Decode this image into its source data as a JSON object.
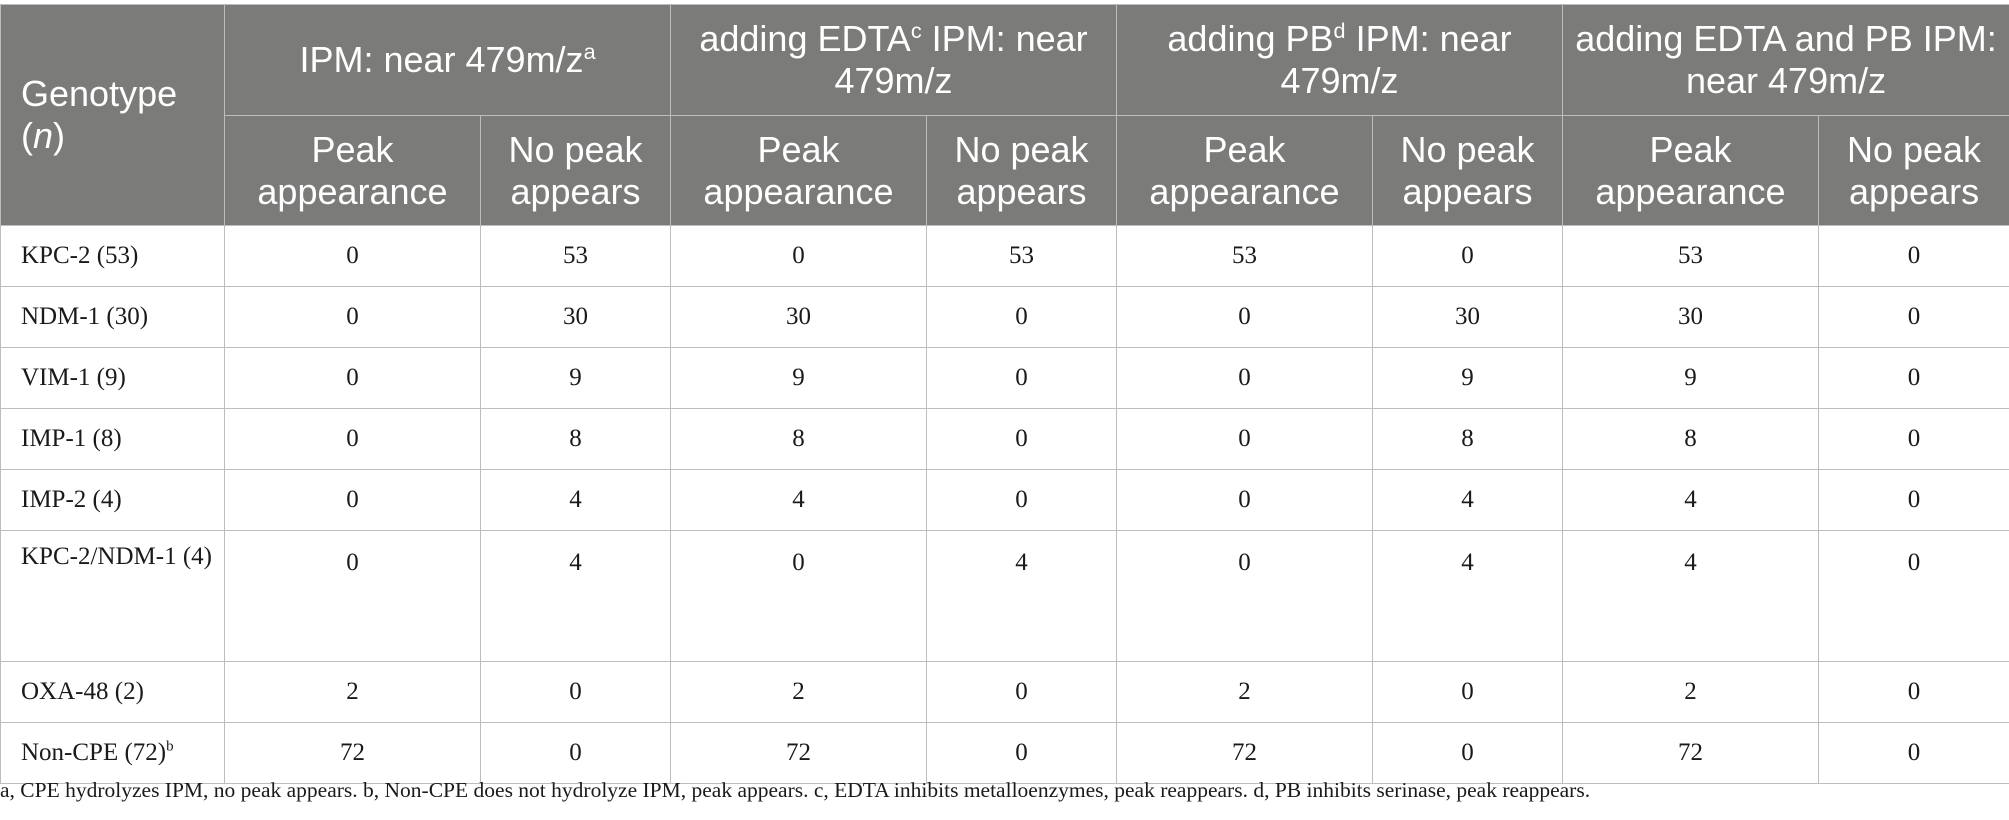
{
  "table": {
    "genotype_header": "Genotype",
    "genotype_header_n": "n",
    "groups": [
      {
        "label": "IPM: near 479m/z",
        "sup": "a",
        "suffix": ""
      },
      {
        "label": "adding EDTA",
        "sup": "c",
        "suffix": " IPM: near 479m/z"
      },
      {
        "label": "adding PB",
        "sup": "d",
        "suffix": " IPM: near 479m/z"
      },
      {
        "label": "adding EDTA and PB IPM: near 479m/z",
        "sup": "",
        "suffix": ""
      }
    ],
    "subheaders": {
      "peak": "Peak appearance",
      "no_peak": "No peak appears"
    },
    "rows": [
      {
        "genotype": "KPC-2 (53)",
        "sup": "",
        "values": [
          "0",
          "53",
          "0",
          "53",
          "53",
          "0",
          "53",
          "0"
        ]
      },
      {
        "genotype": "NDM-1 (30)",
        "sup": "",
        "values": [
          "0",
          "30",
          "30",
          "0",
          "0",
          "30",
          "30",
          "0"
        ]
      },
      {
        "genotype": "VIM-1 (9)",
        "sup": "",
        "values": [
          "0",
          "9",
          "9",
          "0",
          "0",
          "9",
          "9",
          "0"
        ]
      },
      {
        "genotype": "IMP-1 (8)",
        "sup": "",
        "values": [
          "0",
          "8",
          "8",
          "0",
          "0",
          "8",
          "8",
          "0"
        ]
      },
      {
        "genotype": "IMP-2 (4)",
        "sup": "",
        "values": [
          "0",
          "4",
          "4",
          "0",
          "0",
          "4",
          "4",
          "0"
        ]
      },
      {
        "genotype": "KPC-2/NDM-1 (4)",
        "sup": "",
        "values": [
          "0",
          "4",
          "0",
          "4",
          "0",
          "4",
          "4",
          "0"
        ]
      },
      {
        "genotype": "OXA-48 (2)",
        "sup": "",
        "values": [
          "2",
          "0",
          "2",
          "0",
          "2",
          "0",
          "2",
          "0"
        ]
      },
      {
        "genotype": "Non-CPE (72)",
        "sup": "b",
        "values": [
          "72",
          "0",
          "72",
          "0",
          "72",
          "0",
          "72",
          "0"
        ]
      }
    ]
  },
  "footnote": "a, CPE hydrolyzes IPM, no peak appears. b, Non-CPE does not hydrolyze IPM, peak appears. c, EDTA inhibits metalloenzymes, peak reappears. d, PB inhibits serinase, peak reappears."
}
